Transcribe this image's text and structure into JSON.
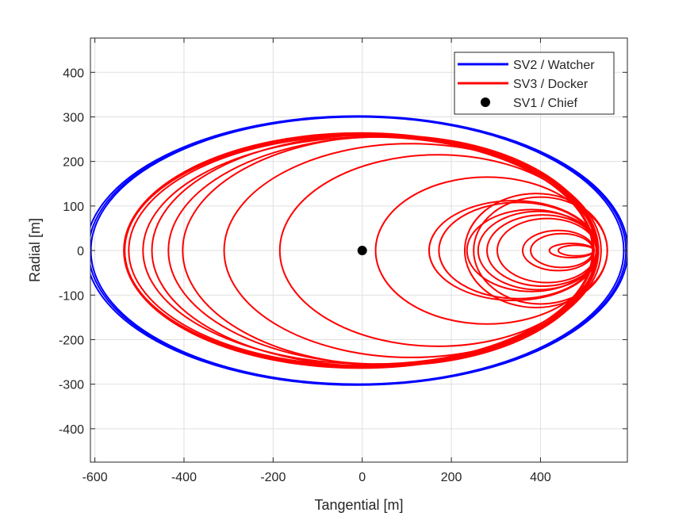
{
  "chart_data": {
    "type": "line",
    "title": "",
    "xlabel": "Tangential [m]",
    "ylabel": "Radial [m]",
    "xlim": [
      -610,
      595
    ],
    "ylim": [
      -475,
      477
    ],
    "xticks": [
      -600,
      -400,
      -200,
      0,
      200,
      400
    ],
    "yticks": [
      -400,
      -300,
      -200,
      -100,
      0,
      100,
      200,
      300,
      400
    ],
    "grid": true,
    "legend_position": "top-right",
    "series": [
      {
        "name": "SV2 / Watcher",
        "color": "#0000ff",
        "ellipses": [
          {
            "cx": -11,
            "cy": 0,
            "a": 598,
            "b": 300
          },
          {
            "cx": -11,
            "cy": 0,
            "a": 603,
            "b": 301
          },
          {
            "cx": -12,
            "cy": 0,
            "a": 608,
            "b": 302
          }
        ]
      },
      {
        "name": "SV3 / Docker",
        "color": "#ff0000",
        "ellipses": [
          {
            "cx": -8,
            "cy": 0,
            "a": 525,
            "b": 262
          },
          {
            "cx": -5,
            "cy": 0,
            "a": 530,
            "b": 264
          },
          {
            "cx": 1,
            "cy": 0,
            "a": 535,
            "b": 260
          },
          {
            "cx": -2,
            "cy": 0,
            "a": 522,
            "b": 258
          },
          {
            "cx": 18,
            "cy": 0,
            "a": 510,
            "b": 255
          },
          {
            "cx": 28,
            "cy": 0,
            "a": 500,
            "b": 260
          },
          {
            "cx": 45,
            "cy": 0,
            "a": 480,
            "b": 255
          },
          {
            "cx": 62,
            "cy": 0,
            "a": 465,
            "b": 258
          },
          {
            "cx": 110,
            "cy": 0,
            "a": 420,
            "b": 240
          },
          {
            "cx": 170,
            "cy": 0,
            "a": 355,
            "b": 215
          },
          {
            "cx": 280,
            "cy": 0,
            "a": 250,
            "b": 165
          },
          {
            "cx": 340,
            "cy": 0,
            "a": 190,
            "b": 112
          },
          {
            "cx": 350,
            "cy": 0,
            "a": 178,
            "b": 108
          },
          {
            "cx": 380,
            "cy": 0,
            "a": 145,
            "b": 92
          },
          {
            "cx": 395,
            "cy": 0,
            "a": 135,
            "b": 88
          },
          {
            "cx": 405,
            "cy": 0,
            "a": 125,
            "b": 80
          },
          {
            "cx": 415,
            "cy": 0,
            "a": 112,
            "b": 72
          },
          {
            "cx": 400,
            "cy": 0,
            "a": 150,
            "b": 120
          },
          {
            "cx": 390,
            "cy": 0,
            "a": 160,
            "b": 128
          },
          {
            "cx": 440,
            "cy": 0,
            "a": 80,
            "b": 45
          },
          {
            "cx": 448,
            "cy": 0,
            "a": 70,
            "b": 38
          },
          {
            "cx": 470,
            "cy": 0,
            "a": 50,
            "b": 16
          },
          {
            "cx": 480,
            "cy": 0,
            "a": 40,
            "b": 12
          }
        ]
      },
      {
        "name": "SV1 / Chief",
        "color": "#000000",
        "marker": "filled-circle",
        "points": [
          [
            0,
            0
          ]
        ]
      }
    ]
  }
}
